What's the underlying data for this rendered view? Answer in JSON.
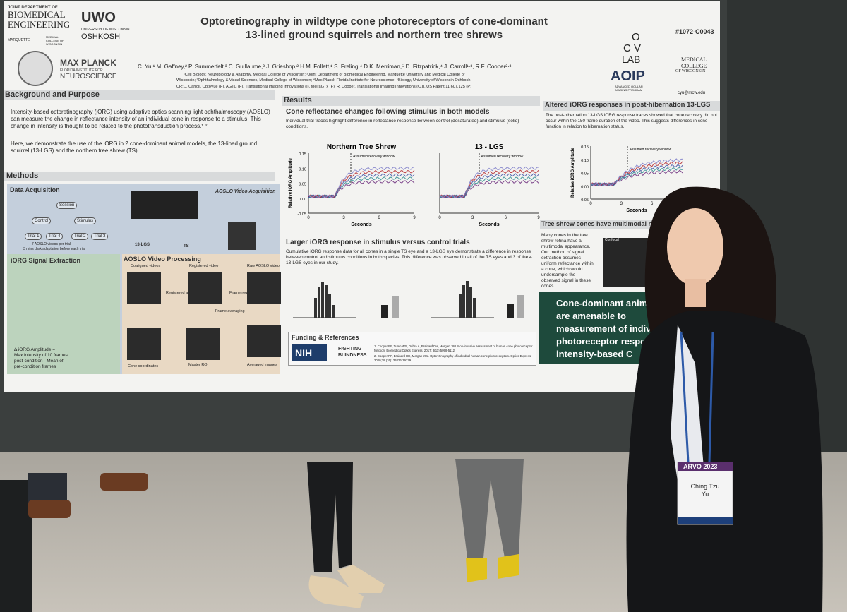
{
  "logos": {
    "bme": [
      "JOINT DEPARTMENT OF",
      "BIOMEDICAL",
      "ENGINEERING"
    ],
    "marquette": "MARQUETTE",
    "mcw_small": "MEDICAL COLLEGE OF WISCONSIN",
    "uwo": "UWO",
    "uwo_sub": [
      "UNIVERSITY OF WISCONSIN",
      "OSHKOSH"
    ],
    "maxplanck": [
      "MAX PLANCK",
      "FLORIDA INSTITUTE FOR",
      "NEUROSCIENCE"
    ],
    "ocv": [
      "O",
      "C V",
      "LAB"
    ],
    "aoip": "AOIP",
    "aoip_sub": [
      "ADVANCED OCULAR",
      "IMAGING PROGRAM"
    ],
    "mcw": [
      "MEDICAL",
      "COLLEGE",
      "OF WISCONSIN"
    ]
  },
  "header": {
    "id": "#1072-C0043",
    "title": [
      "Optoretinography in wildtype cone photoreceptors of cone-dominant",
      "13-lined ground squirrels and northern tree shrews"
    ],
    "authors": "C. Yu,¹ M. Gaffney,² P. Summerfelt,³ C. Guillaume,³ J. Grieshop,² H.M. Follett,¹ S. Freling,⁴ D.K. Merriman,⁵ D. Fitzpatrick,⁴ J. Carroll¹·³, R.F. Cooper²·³",
    "affiliations": [
      "¹Cell Biology, Neurobiology & Anatomy, Medical College of Wisconsin; ²Joint Department of Biomedical Engineering, Marquette University and Medical College of",
      "Wisconsin; ³Ophthalmology & Visual Sciences, Medical College of Wisconsin; ⁴Max Planck Florida Institute for Neuroscience; ⁵Biology, University of Wisconsin Oshkosh",
      "CR: J. Carroll, OptoVue (F), AGTC (F), Translational Imaging Innovations (I), MeiraGTx (F), R. Cooper, Translational Imaging Innovations (C,I), US Patent 11,607,125 (P)"
    ],
    "contact": "cyu@mcw.edu"
  },
  "background": {
    "heading": "Background and Purpose",
    "bullets": [
      "Intensity-based optoretinography (iORG) using adaptive optics scanning light ophthalmoscopy (AOSLO) can measure the change in reflectance intensity of an individual cone in response to a stimulus. This change in intensity is thought to be related to the phototransduction process.¹·²",
      "Here, we demonstrate the use of the iORG in 2 cone-dominant animal models, the 13-lined ground squirrel (13-LGS) and the northern tree shrew (TS)."
    ]
  },
  "methods": {
    "heading": "Methods",
    "acquisition": "Data Acquisition",
    "aoslo": "AOSLO Video Acquisition",
    "tree": [
      "Session",
      "Control",
      "Stimulus",
      "Trial 1",
      "Trial 4",
      "Trial 2",
      "Trial 3"
    ],
    "tree_note": [
      "7 AOSLO videos per trial",
      "3 mins dark adaptation before each trial"
    ],
    "animals": [
      "13-LGS",
      "TS"
    ],
    "processing": "AOSLO Video Processing",
    "steps": [
      "Coaligned videos",
      "Registered video",
      "Raw AOSLO video",
      "Registered all 28 videos",
      "Frame registration",
      "Frame averaging",
      "Cone coordinates",
      "Master ROI",
      "Averaged images"
    ],
    "extraction": "iORG Signal Extraction",
    "amplitude": [
      "Δ iORG Amplitude =",
      "Max intensity of 10 frames",
      "post-condition - Mean of",
      "pre-condition frames"
    ]
  },
  "results": {
    "heading": "Results",
    "sub1": "Cone reflectance changes following stimulus in both models",
    "text1": "Individual trial traces highlight difference in reflectance response between control (desaturated) and stimulus (solid) conditions.",
    "sub2": "Larger iORG response in stimulus versus control trials",
    "text2": "Cumulative iORG response data for all cones in a single TS eye and a 13-LGS eye demonstrate a difference in response between control and stimulus conditions in both species. This difference was observed in all of the TS eyes and 3 of the 4 13-LGS eyes in our study.",
    "funding": "Funding & References",
    "refs": [
      "1. Cooper RF, Tuten WS, Dubra A, Brainard DH, Morgan JIW. Non-invasive assessment of human cone photoreceptor function. Biomedical Optics Express. 2017; 8(11):5098-5112",
      "2. Cooper RF, Brainard DH, Morgan JIW. Optoretinography of individual human cone photoreceptors. Optics Express. 2020;28 (26): 39326-39339"
    ],
    "nih": "NIH",
    "ffb": [
      "FIGHTING",
      "BLINDNESS"
    ]
  },
  "plots": [
    {
      "title": "Northern Tree Shrew",
      "annotation": "Assumed recovery window",
      "xlabel": "Seconds",
      "ylabel": "Relative iORG Amplitude",
      "xticks": [
        "0",
        "3",
        "6",
        "9"
      ],
      "yticks": [
        "0.15",
        "0.10",
        "0.05",
        "0.00",
        "-0.05"
      ]
    },
    {
      "title": "13 - LGS",
      "annotation": "Assumed recovery window",
      "xlabel": "Seconds",
      "xticks": [
        "0",
        "3",
        "6",
        "9"
      ]
    },
    {
      "annotation": "Assumed recovery window",
      "xlabel": "Seconds",
      "ylabel": "Relative iORG Amplitude",
      "xticks": [
        "0",
        "3",
        "6",
        "9"
      ],
      "yticks": [
        "0.15",
        "0.10",
        "0.05",
        "0.00",
        "-0.05"
      ]
    }
  ],
  "right": {
    "heading": "Altered iORG responses in post-hibernation 13-LGS",
    "text": "The post-hibernation 13-LGS iORG response traces showed that cone recovery did not occur within the 150 frame duration of the video. This suggests differences in cone function in relation to hibernation status.",
    "sub": "Tree shrew cones have multimodal refle",
    "text2": [
      "Many cones in the tree",
      "shrew retina have a",
      "multimodal appearance.",
      "Our method of signal",
      "extraction assumes",
      "uniform reflectance within",
      "a cone, which would",
      "undersample the",
      "observed signal in these",
      "cones."
    ],
    "confocal": "Confocal",
    "box": [
      "Cone-dominant anima",
      "are amenable to",
      "measurement of indiv",
      "photoreceptor respons",
      "intensity-based C"
    ]
  },
  "badge": {
    "event": "ARVO 2023",
    "name": [
      "Ching Tzu",
      "Yu"
    ]
  }
}
